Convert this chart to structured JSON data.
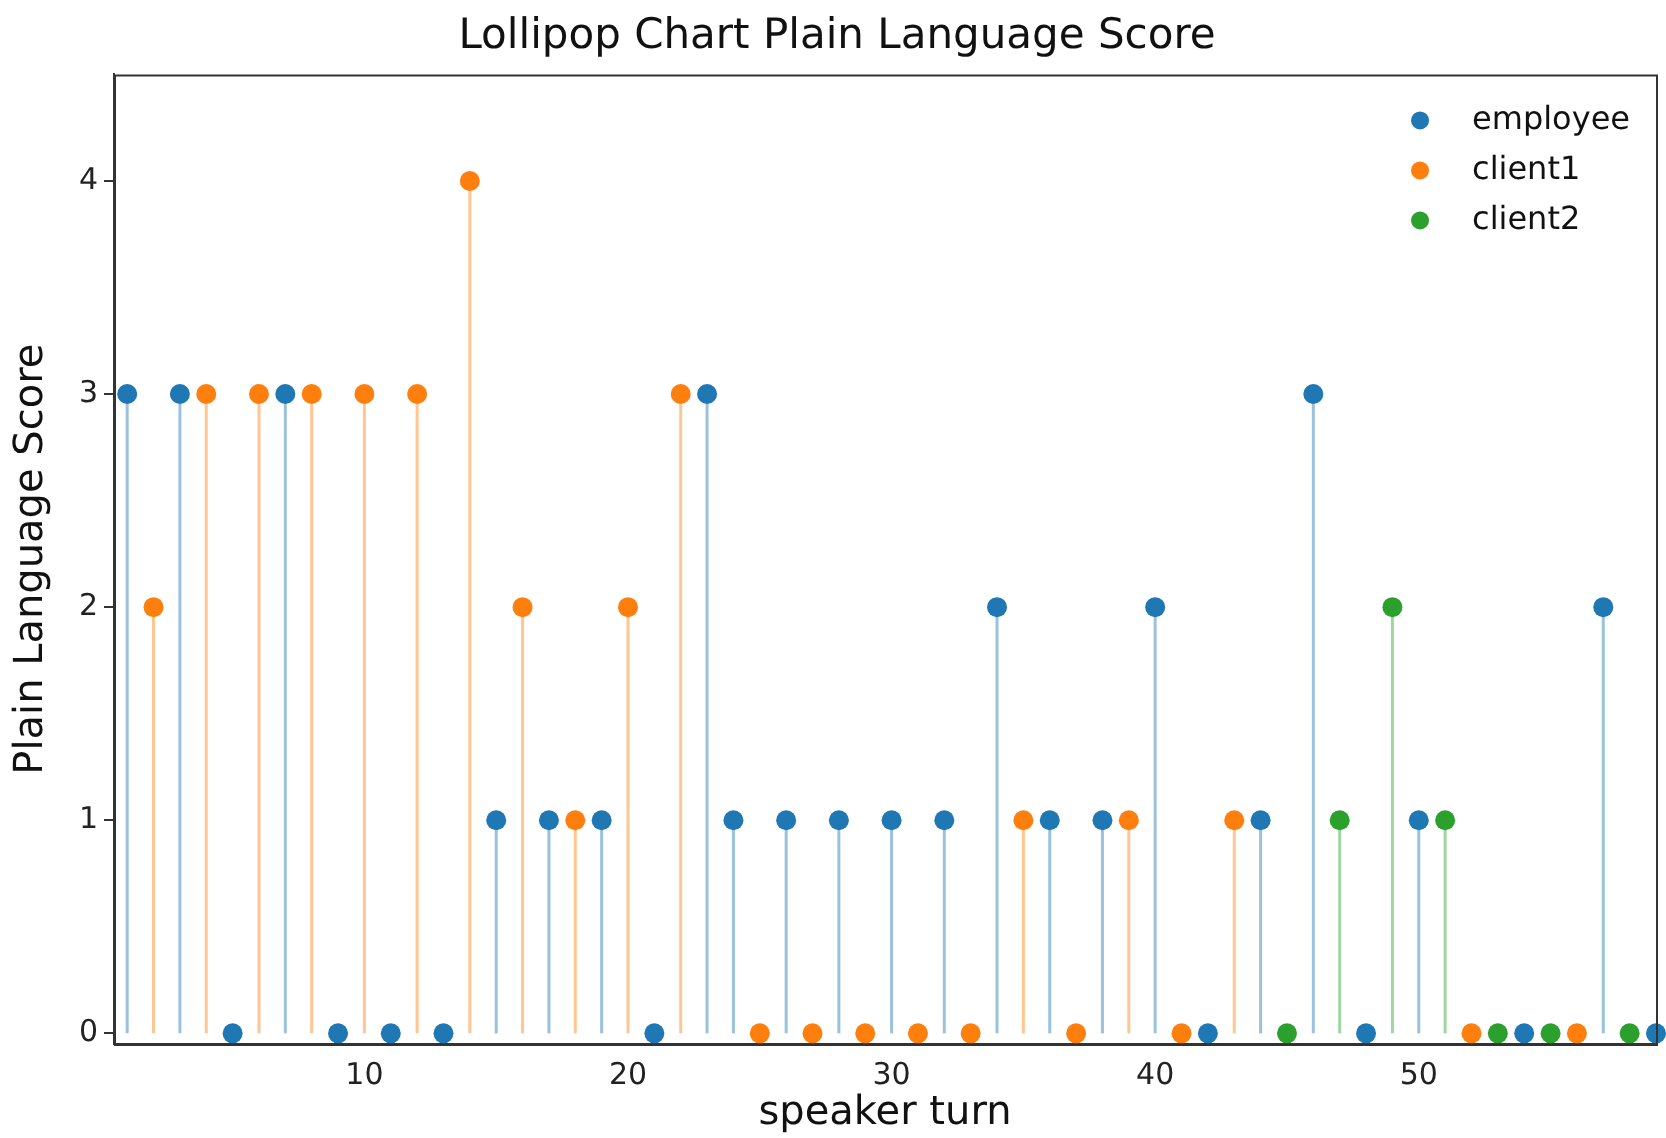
{
  "chart_data": {
    "type": "lollipop",
    "title": "Lollipop Chart Plain Language Score",
    "xlabel": "speaker turn",
    "ylabel": "Plain Language Score",
    "xlim": [
      0.5,
      59
    ],
    "xticks": [
      10,
      20,
      30,
      40,
      50
    ],
    "ylim": [
      -0.05,
      4.5
    ],
    "yticks": [
      0,
      1,
      2,
      3,
      4
    ],
    "grid": false,
    "legend": "top right",
    "marker": "circle",
    "series": [
      {
        "name": "employee",
        "color": "#1f77b4",
        "x": [
          1,
          3,
          5,
          7,
          9,
          11,
          13,
          15,
          17,
          19,
          21,
          23,
          24,
          26,
          28,
          30,
          32,
          34,
          36,
          38,
          40,
          42,
          44,
          46,
          48,
          50,
          54,
          57,
          59
        ],
        "values": [
          3,
          3,
          0,
          3,
          0,
          0,
          0,
          1,
          1,
          1,
          0,
          3,
          1,
          1,
          1,
          1,
          1,
          2,
          1,
          1,
          2,
          0,
          1,
          3,
          0,
          1,
          0,
          2,
          0
        ]
      },
      {
        "name": "client1",
        "color": "#ff7f0e",
        "x": [
          2,
          4,
          6,
          8,
          10,
          12,
          14,
          16,
          18,
          20,
          22,
          25,
          27,
          29,
          31,
          33,
          35,
          37,
          39,
          41,
          43,
          52,
          56
        ],
        "values": [
          2,
          3,
          3,
          3,
          3,
          3,
          4,
          2,
          1,
          2,
          3,
          0,
          0,
          0,
          0,
          0,
          1,
          0,
          1,
          0,
          1,
          0,
          0
        ]
      },
      {
        "name": "client2",
        "color": "#2ca02c",
        "x": [
          45,
          47,
          49,
          51,
          53,
          55,
          58
        ],
        "values": [
          0,
          1,
          2,
          1,
          0,
          0,
          0
        ]
      }
    ]
  }
}
